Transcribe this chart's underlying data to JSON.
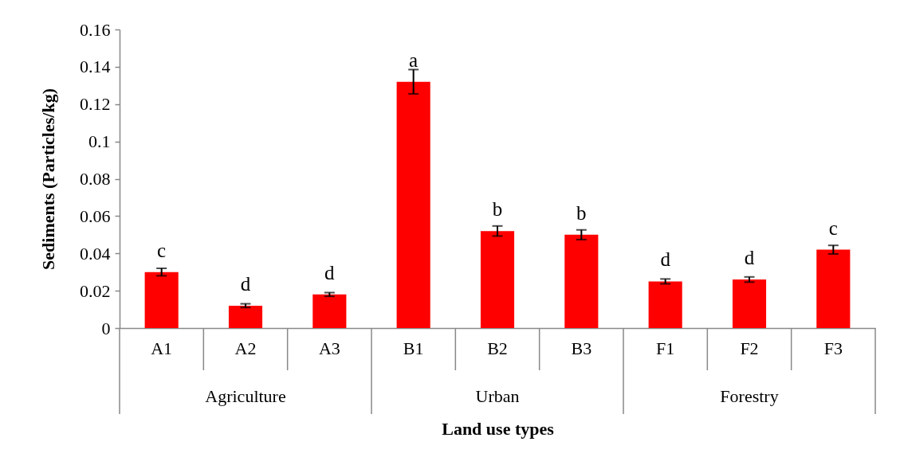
{
  "chart_data": {
    "type": "bar",
    "xlabel": "Land use types",
    "ylabel": "Sediments (Particles/kg)",
    "categories": [
      "A1",
      "A2",
      "A3",
      "B1",
      "B2",
      "B3",
      "F1",
      "F2",
      "F3"
    ],
    "values": [
      0.03,
      0.012,
      0.018,
      0.132,
      0.052,
      0.05,
      0.025,
      0.026,
      0.042
    ],
    "errors": [
      0.002,
      0.001,
      0.001,
      0.0065,
      0.0027,
      0.0026,
      0.0013,
      0.0014,
      0.0023
    ],
    "value_labels": [
      "c",
      "d",
      "d",
      "a",
      "b",
      "b",
      "d",
      "d",
      "c"
    ],
    "color": "#ff0000",
    "ylim": [
      0,
      0.16
    ],
    "yticks": [
      0,
      0.02,
      0.04,
      0.06,
      0.08,
      0.1,
      0.12,
      0.14,
      0.16
    ],
    "grid": false,
    "annotations": [
      "Agriculture",
      "Urban",
      "Forestry"
    ]
  }
}
